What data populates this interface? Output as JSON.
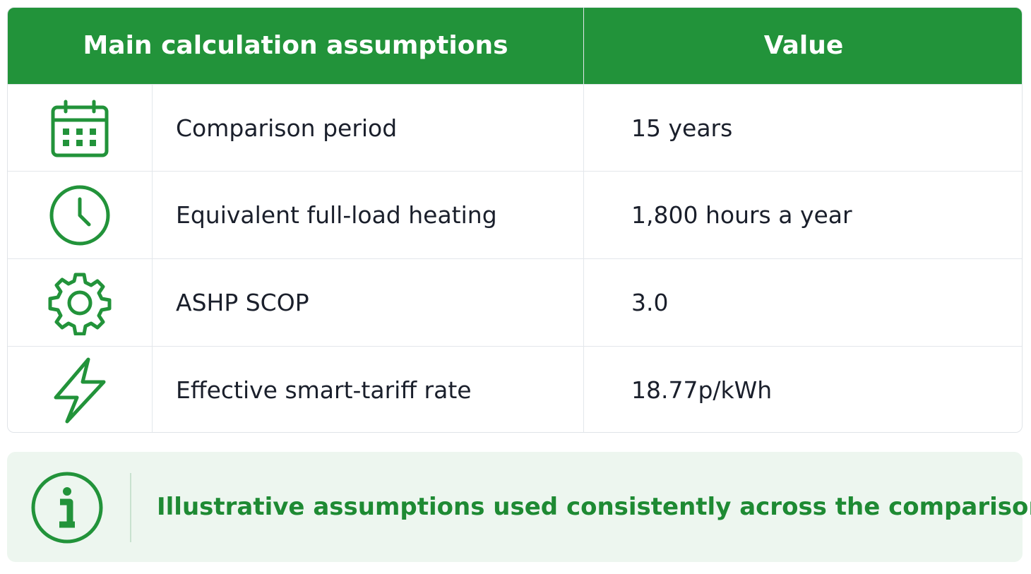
{
  "table": {
    "header": [
      "Main calculation assumptions",
      "Value"
    ],
    "rows": [
      [
        "Comparison period",
        "15 years"
      ],
      [
        "Equivalent full-load heating",
        "1,800 hours a year"
      ],
      [
        "ASHP SCOP",
        "3.0"
      ],
      [
        "Effective smart-tariff rate",
        "18.77p/kWh"
      ]
    ]
  },
  "note": "Illustrative assumptions used consistently across the comparison."
}
